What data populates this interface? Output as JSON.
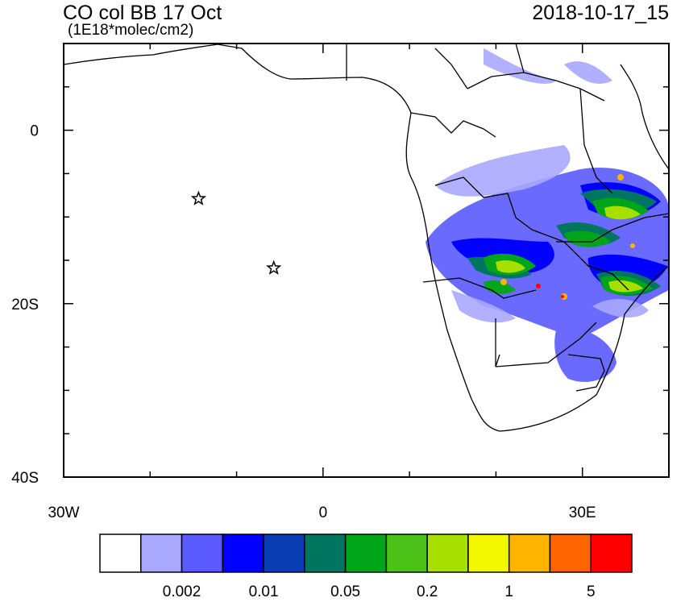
{
  "map": {
    "title": "CO col BB 17 Oct",
    "units": "(1E18*molec/cm2)",
    "datetime": "2018-10-17_15",
    "x_axis": {
      "ticks": [
        {
          "lon": -30,
          "label": "30W"
        },
        {
          "lon": 0,
          "label": "0"
        },
        {
          "lon": 30,
          "label": "30E"
        }
      ],
      "range": [
        -30,
        40
      ]
    },
    "y_axis": {
      "ticks": [
        {
          "lat": 0,
          "label": "0"
        },
        {
          "lat": -20,
          "label": "20S"
        },
        {
          "lat": -40,
          "label": "40S"
        }
      ],
      "range": [
        -40,
        10
      ]
    },
    "markers": [
      {
        "name": "star",
        "lon": -14.4,
        "lat": -7.9
      },
      {
        "name": "star",
        "lon": -5.7,
        "lat": -15.9
      }
    ]
  },
  "colorbar": {
    "colors": [
      "#ffffff",
      "#a8a8ff",
      "#5a5aff",
      "#0000ff",
      "#0a3cb4",
      "#007560",
      "#00a51a",
      "#4dc31a",
      "#a6df00",
      "#f3f700",
      "#ffb400",
      "#ff6400",
      "#ff0000"
    ],
    "labels": [
      {
        "text": "0.002",
        "boundary": 2
      },
      {
        "text": "0.01",
        "boundary": 4
      },
      {
        "text": "0.05",
        "boundary": 6
      },
      {
        "text": "0.2",
        "boundary": 8
      },
      {
        "text": "1",
        "boundary": 10
      },
      {
        "text": "5",
        "boundary": 12
      }
    ]
  }
}
